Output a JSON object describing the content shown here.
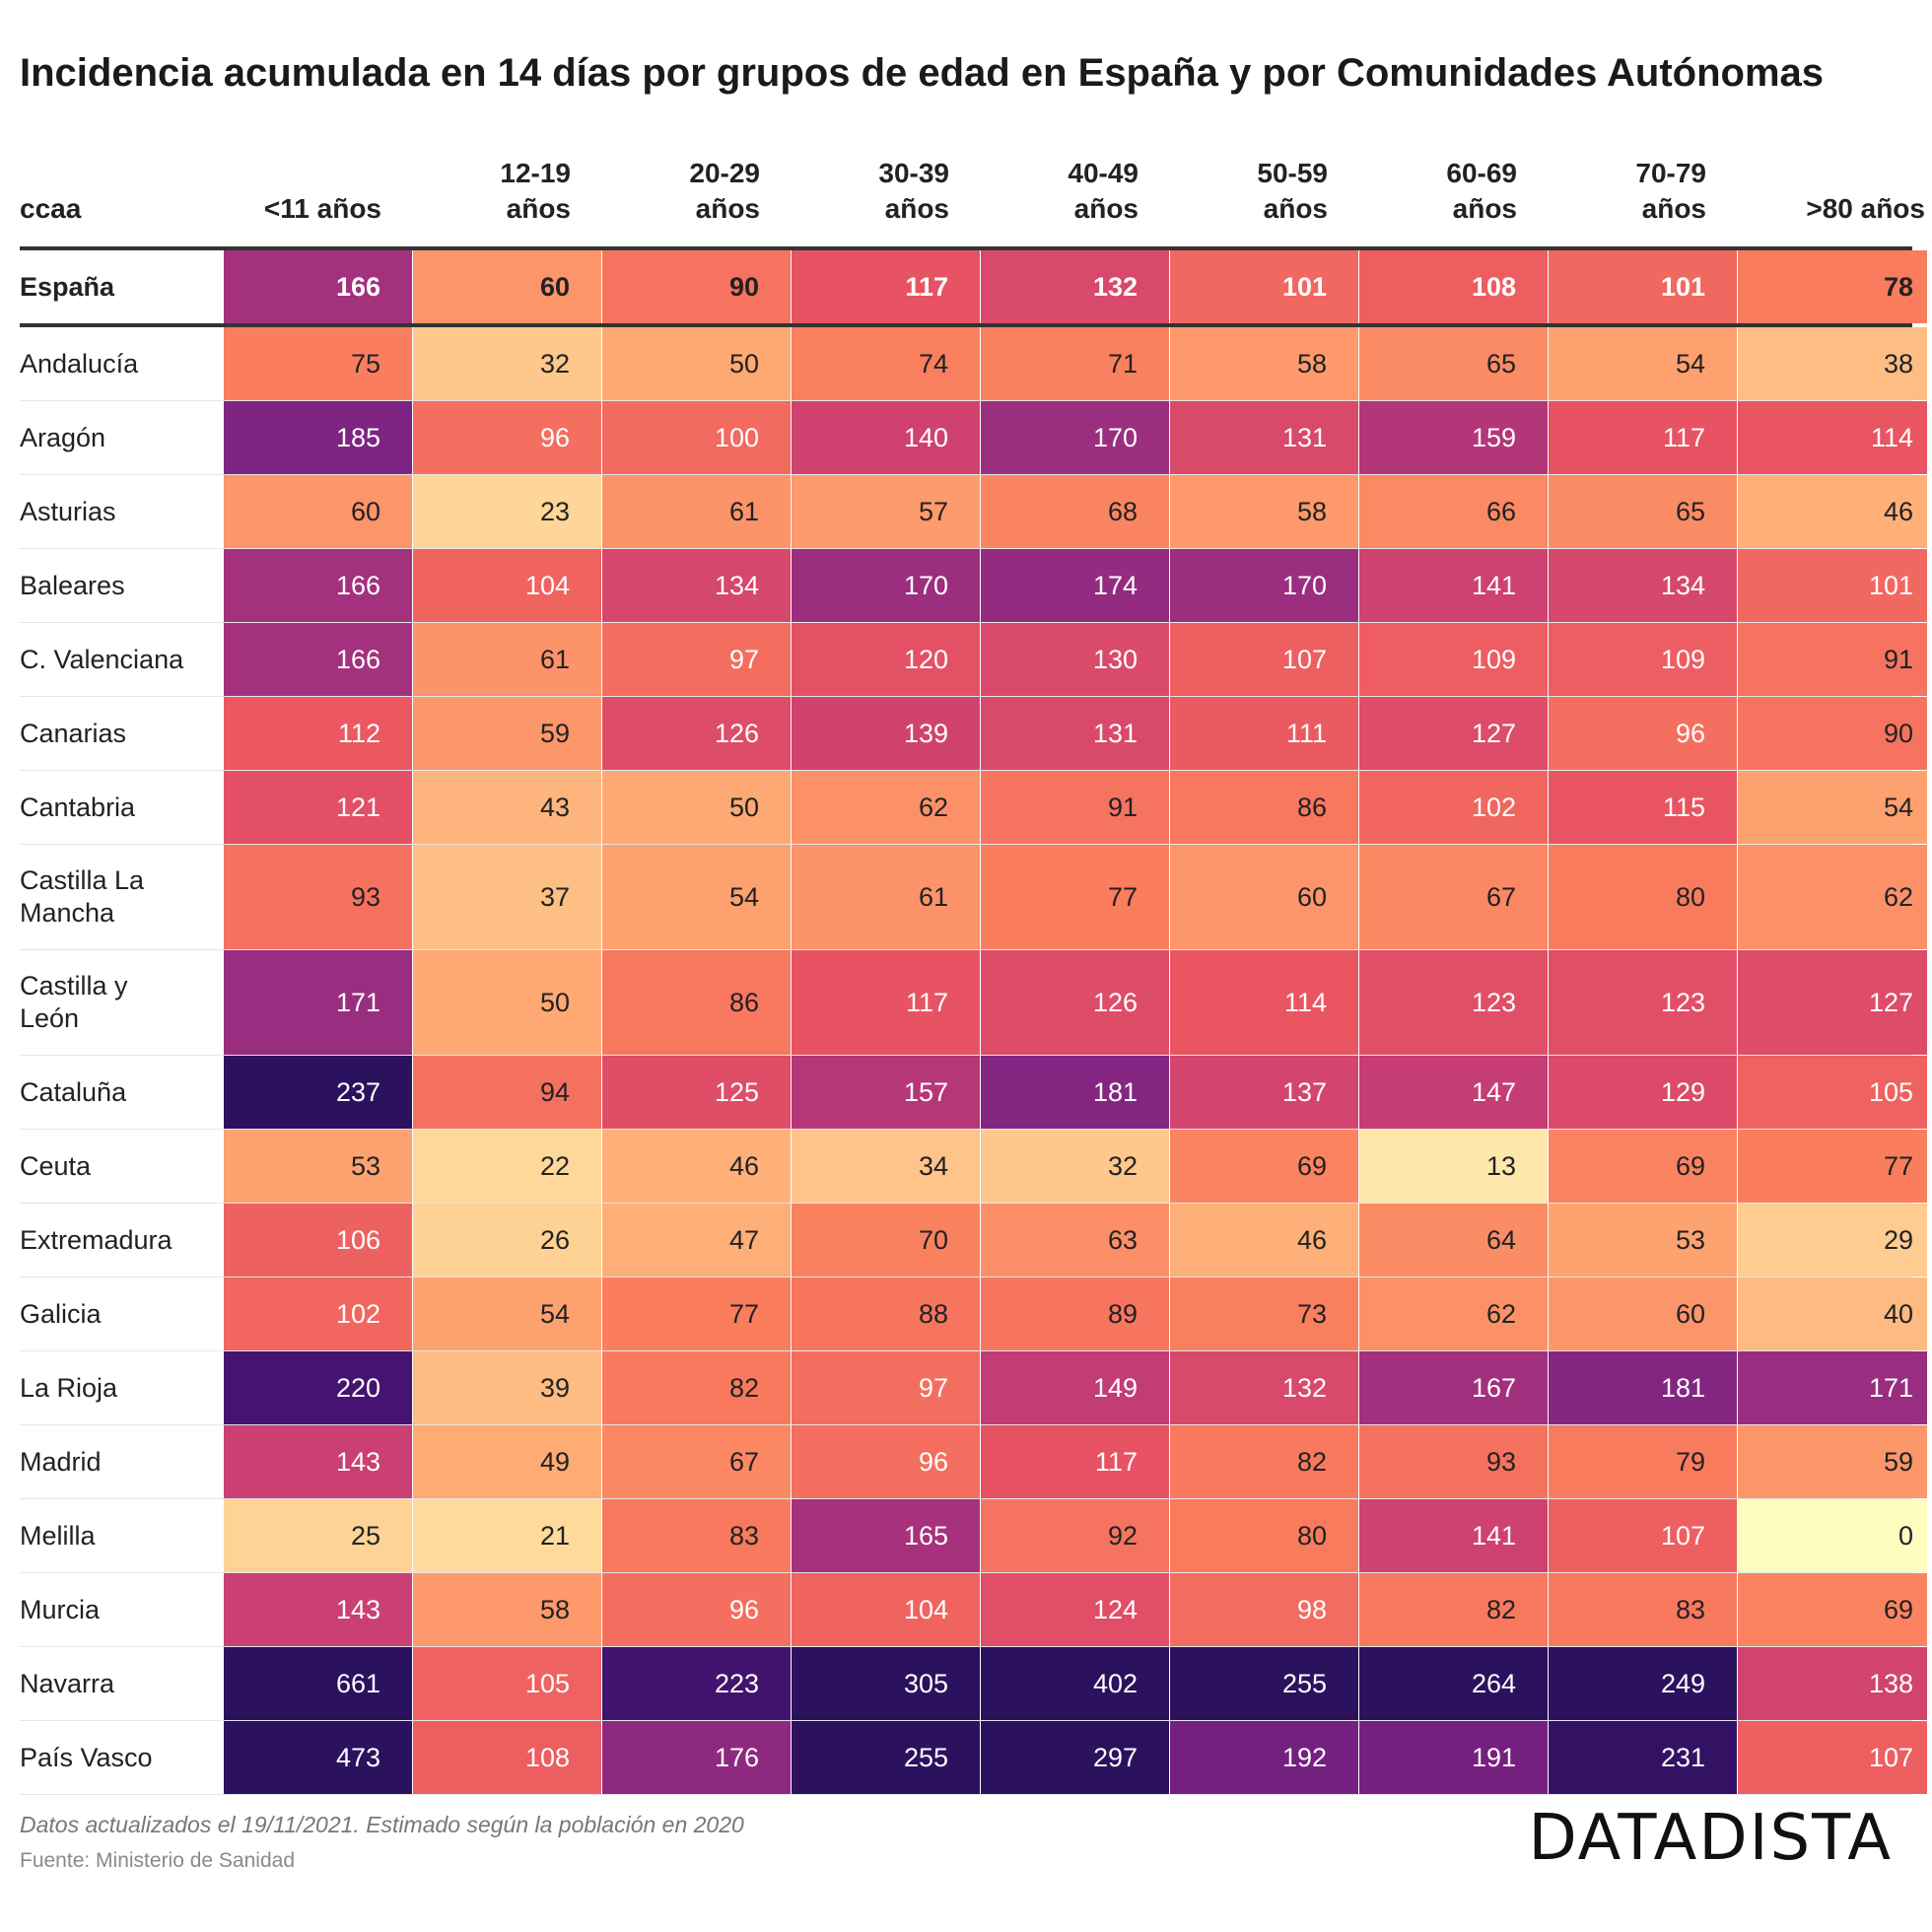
{
  "title": "Incidencia acumulada en 14 días por grupos de edad en España y por Comunidades Autónomas",
  "footnote": "Datos actualizados el 19/11/2021. Estimado según la población en 2020",
  "source": "Fuente: Ministerio de Sanidad",
  "logo": "DATADISTA",
  "chart_data": {
    "type": "heatmap",
    "row_header": "ccaa",
    "columns": [
      "<11 años",
      "12-19 años",
      "20-29 años",
      "30-39 años",
      "40-49 años",
      "50-59 años",
      "60-69 años",
      "70-79 años",
      ">80 años"
    ],
    "rows": [
      {
        "name": "España",
        "values": [
          166,
          60,
          90,
          117,
          132,
          101,
          108,
          101,
          78
        ]
      },
      {
        "name": "Andalucía",
        "values": [
          75,
          32,
          50,
          74,
          71,
          58,
          65,
          54,
          38
        ]
      },
      {
        "name": "Aragón",
        "values": [
          185,
          96,
          100,
          140,
          170,
          131,
          159,
          117,
          114
        ]
      },
      {
        "name": "Asturias",
        "values": [
          60,
          23,
          61,
          57,
          68,
          58,
          66,
          65,
          46
        ]
      },
      {
        "name": "Baleares",
        "values": [
          166,
          104,
          134,
          170,
          174,
          170,
          141,
          134,
          101
        ]
      },
      {
        "name": "C. Valenciana",
        "values": [
          166,
          61,
          97,
          120,
          130,
          107,
          109,
          109,
          91
        ]
      },
      {
        "name": "Canarias",
        "values": [
          112,
          59,
          126,
          139,
          131,
          111,
          127,
          96,
          90
        ]
      },
      {
        "name": "Cantabria",
        "values": [
          121,
          43,
          50,
          62,
          91,
          86,
          102,
          115,
          54
        ]
      },
      {
        "name": "Castilla La Mancha",
        "values": [
          93,
          37,
          54,
          61,
          77,
          60,
          67,
          80,
          62
        ]
      },
      {
        "name": "Castilla y León",
        "values": [
          171,
          50,
          86,
          117,
          126,
          114,
          123,
          123,
          127
        ]
      },
      {
        "name": "Cataluña",
        "values": [
          237,
          94,
          125,
          157,
          181,
          137,
          147,
          129,
          105
        ]
      },
      {
        "name": "Ceuta",
        "values": [
          53,
          22,
          46,
          34,
          32,
          69,
          13,
          69,
          77
        ]
      },
      {
        "name": "Extremadura",
        "values": [
          106,
          26,
          47,
          70,
          63,
          46,
          64,
          53,
          29
        ]
      },
      {
        "name": "Galicia",
        "values": [
          102,
          54,
          77,
          88,
          89,
          73,
          62,
          60,
          40
        ]
      },
      {
        "name": "La Rioja",
        "values": [
          220,
          39,
          82,
          97,
          149,
          132,
          167,
          181,
          171
        ]
      },
      {
        "name": "Madrid",
        "values": [
          143,
          49,
          67,
          96,
          117,
          82,
          93,
          79,
          59
        ]
      },
      {
        "name": "Melilla",
        "values": [
          25,
          21,
          83,
          165,
          92,
          80,
          141,
          107,
          0
        ]
      },
      {
        "name": "Murcia",
        "values": [
          143,
          58,
          96,
          104,
          124,
          98,
          82,
          83,
          69
        ]
      },
      {
        "name": "Navarra",
        "values": [
          661,
          105,
          223,
          305,
          402,
          255,
          264,
          249,
          138
        ]
      },
      {
        "name": "País Vasco",
        "values": [
          473,
          108,
          176,
          255,
          297,
          192,
          191,
          231,
          107
        ]
      }
    ],
    "color_scale": [
      "#fcfdbf",
      "#fed395",
      "#fea973",
      "#fa7d5e",
      "#e95462",
      "#c83e73",
      "#a3307e",
      "#7e2482",
      "#59157e",
      "#2c115f"
    ]
  }
}
